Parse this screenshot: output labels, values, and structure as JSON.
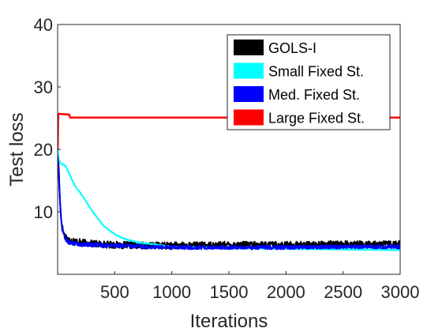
{
  "chart_data": {
    "type": "line",
    "title": "",
    "xlabel": "Iterations",
    "ylabel": "Test loss",
    "xlim": [
      0,
      3000
    ],
    "ylim": [
      0,
      40
    ],
    "xticks": [
      500,
      1000,
      1500,
      2000,
      2500,
      3000
    ],
    "yticks": [
      10,
      20,
      30,
      40
    ],
    "grid": false,
    "legend_position": "top-right",
    "series": [
      {
        "name": "GOLS-I",
        "color": "#000000",
        "noise": 0.55,
        "x": [
          1,
          10,
          20,
          30,
          40,
          60,
          80,
          100,
          150,
          200,
          300,
          500,
          800,
          1000,
          1500,
          2000,
          2500,
          3000
        ],
        "y": [
          20,
          17,
          12,
          9,
          7.5,
          6.2,
          5.8,
          5.5,
          5.3,
          5.1,
          4.9,
          4.7,
          4.6,
          4.6,
          4.7,
          4.7,
          4.8,
          4.8
        ]
      },
      {
        "name": "Small Fixed St.",
        "color": "#00FFFF",
        "noise": 0.08,
        "x": [
          1,
          10,
          20,
          30,
          40,
          50,
          70,
          100,
          150,
          200,
          300,
          400,
          500,
          600,
          700,
          800,
          1000,
          1500,
          2000,
          2500,
          3000
        ],
        "y": [
          20,
          18.5,
          18,
          17.7,
          17.6,
          17.6,
          17.3,
          16.2,
          14.2,
          13,
          10.2,
          7.8,
          6.4,
          5.6,
          5.1,
          4.9,
          4.4,
          4.2,
          4.1,
          4.0,
          3.9
        ]
      },
      {
        "name": "Med. Fixed St.",
        "color": "#0000FF",
        "noise": 0.3,
        "x": [
          1,
          10,
          20,
          30,
          40,
          60,
          80,
          100,
          150,
          200,
          300,
          500,
          800,
          1000,
          1500,
          2000,
          2500,
          3000
        ],
        "y": [
          19,
          16,
          12,
          9,
          7.4,
          6.0,
          5.4,
          5.1,
          4.9,
          4.8,
          4.7,
          4.6,
          4.4,
          4.3,
          4.3,
          4.3,
          4.4,
          4.4
        ]
      },
      {
        "name": "Large Fixed St.",
        "color": "#FF0000",
        "noise": 0,
        "x": [
          1,
          5,
          10,
          80,
          100,
          110,
          3000
        ],
        "y": [
          20,
          25.7,
          25.7,
          25.6,
          25.6,
          25.1,
          25.1
        ]
      }
    ]
  }
}
